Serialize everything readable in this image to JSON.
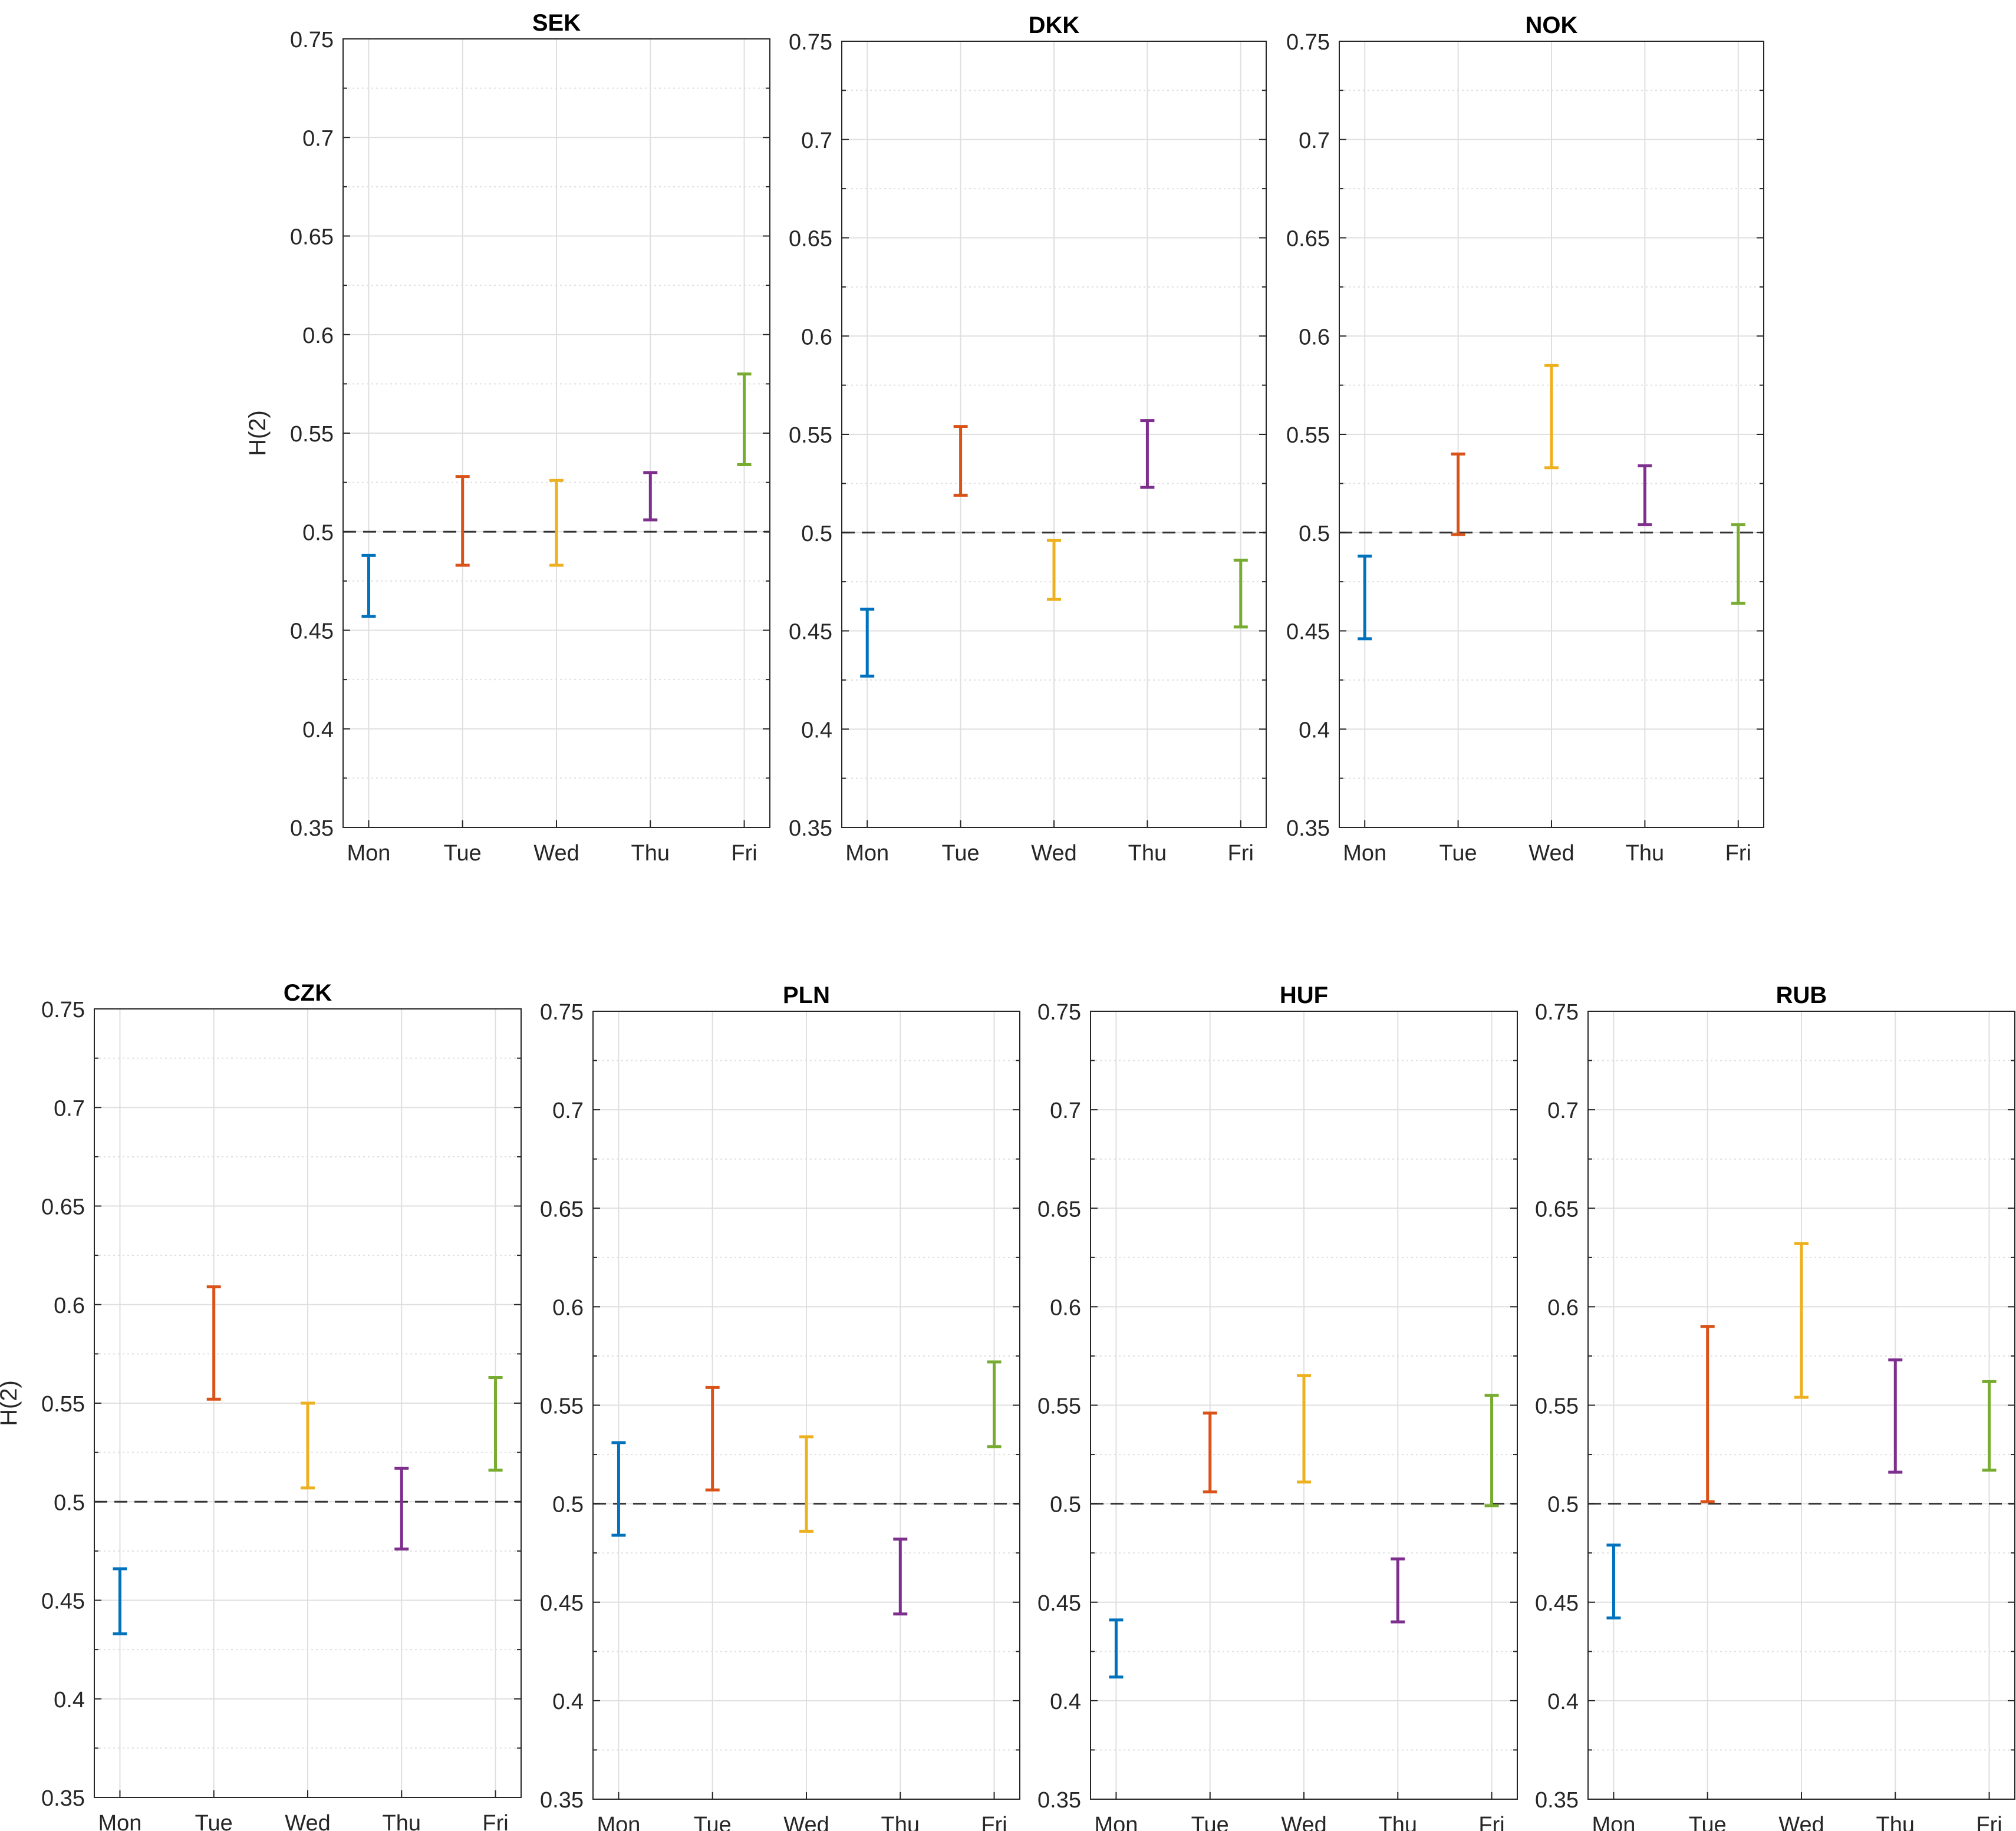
{
  "chart_data": [
    {
      "type": "errorbar",
      "title": "SEK",
      "ylabel": "H(2)",
      "categories": [
        "Mon",
        "Tue",
        "Wed",
        "Thu",
        "Fri"
      ],
      "lower": [
        0.457,
        0.483,
        0.483,
        0.506,
        0.534
      ],
      "upper": [
        0.488,
        0.528,
        0.526,
        0.53,
        0.58
      ],
      "ylim": [
        0.35,
        0.75
      ],
      "yticks": [
        "0.35",
        "0.4",
        "0.45",
        "0.5",
        "0.55",
        "0.6",
        "0.65",
        "0.7",
        "0.75"
      ],
      "reference_line": 0.5,
      "grid": true
    },
    {
      "type": "errorbar",
      "title": "DKK",
      "ylabel": "",
      "categories": [
        "Mon",
        "Tue",
        "Wed",
        "Thu",
        "Fri"
      ],
      "lower": [
        0.427,
        0.519,
        0.466,
        0.523,
        0.452
      ],
      "upper": [
        0.461,
        0.554,
        0.496,
        0.557,
        0.486
      ],
      "ylim": [
        0.35,
        0.75
      ],
      "yticks": [
        "0.35",
        "0.4",
        "0.45",
        "0.5",
        "0.55",
        "0.6",
        "0.65",
        "0.7",
        "0.75"
      ],
      "reference_line": 0.5,
      "grid": true
    },
    {
      "type": "errorbar",
      "title": "NOK",
      "ylabel": "",
      "categories": [
        "Mon",
        "Tue",
        "Wed",
        "Thu",
        "Fri"
      ],
      "lower": [
        0.446,
        0.499,
        0.533,
        0.504,
        0.464
      ],
      "upper": [
        0.488,
        0.54,
        0.585,
        0.534,
        0.504
      ],
      "ylim": [
        0.35,
        0.75
      ],
      "yticks": [
        "0.35",
        "0.4",
        "0.45",
        "0.5",
        "0.55",
        "0.6",
        "0.65",
        "0.7",
        "0.75"
      ],
      "reference_line": 0.5,
      "grid": true
    },
    {
      "type": "errorbar",
      "title": "CZK",
      "ylabel": "H(2)",
      "categories": [
        "Mon",
        "Tue",
        "Wed",
        "Thu",
        "Fri"
      ],
      "lower": [
        0.433,
        0.552,
        0.507,
        0.476,
        0.516
      ],
      "upper": [
        0.466,
        0.609,
        0.55,
        0.517,
        0.563
      ],
      "ylim": [
        0.35,
        0.75
      ],
      "yticks": [
        "0.35",
        "0.4",
        "0.45",
        "0.5",
        "0.55",
        "0.6",
        "0.65",
        "0.7",
        "0.75"
      ],
      "reference_line": 0.5,
      "grid": true
    },
    {
      "type": "errorbar",
      "title": "PLN",
      "ylabel": "",
      "categories": [
        "Mon",
        "Tue",
        "Wed",
        "Thu",
        "Fri"
      ],
      "lower": [
        0.484,
        0.507,
        0.486,
        0.444,
        0.529
      ],
      "upper": [
        0.531,
        0.559,
        0.534,
        0.482,
        0.572
      ],
      "ylim": [
        0.35,
        0.75
      ],
      "yticks": [
        "0.35",
        "0.4",
        "0.45",
        "0.5",
        "0.55",
        "0.6",
        "0.65",
        "0.7",
        "0.75"
      ],
      "reference_line": 0.5,
      "grid": true
    },
    {
      "type": "errorbar",
      "title": "HUF",
      "ylabel": "",
      "categories": [
        "Mon",
        "Tue",
        "Wed",
        "Thu",
        "Fri"
      ],
      "lower": [
        0.412,
        0.506,
        0.511,
        0.44,
        0.499
      ],
      "upper": [
        0.441,
        0.546,
        0.565,
        0.472,
        0.555
      ],
      "ylim": [
        0.35,
        0.75
      ],
      "yticks": [
        "0.35",
        "0.4",
        "0.45",
        "0.5",
        "0.55",
        "0.6",
        "0.65",
        "0.7",
        "0.75"
      ],
      "reference_line": 0.5,
      "grid": true
    },
    {
      "type": "errorbar",
      "title": "RUB",
      "ylabel": "",
      "categories": [
        "Mon",
        "Tue",
        "Wed",
        "Thu",
        "Fri"
      ],
      "lower": [
        0.442,
        0.501,
        0.554,
        0.516,
        0.517
      ],
      "upper": [
        0.479,
        0.59,
        0.632,
        0.573,
        0.562
      ],
      "ylim": [
        0.35,
        0.75
      ],
      "yticks": [
        "0.35",
        "0.4",
        "0.45",
        "0.5",
        "0.55",
        "0.6",
        "0.65",
        "0.7",
        "0.75"
      ],
      "reference_line": 0.5,
      "grid": true
    }
  ],
  "colors": [
    "#0072BD",
    "#D95319",
    "#EDB120",
    "#7E2F8E",
    "#77AC30"
  ],
  "axis_color": "#262626",
  "grid_color": "#dfdfdf",
  "reference_color": "#333333"
}
